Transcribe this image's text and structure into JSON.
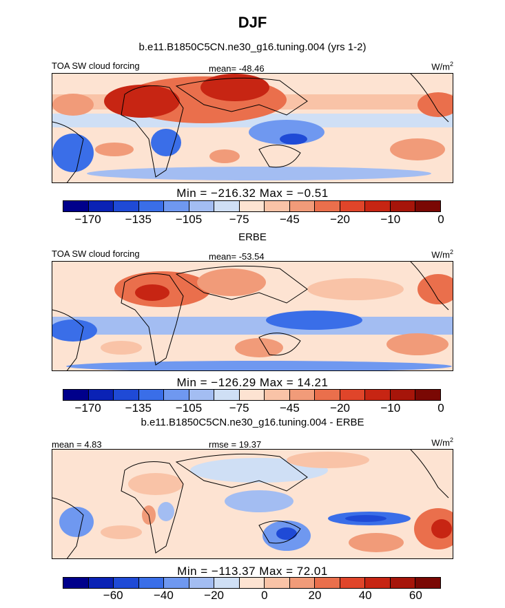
{
  "figure": {
    "title": "DJF",
    "panel1_title": "b.e11.B1850C5CN.ne30_g16.tuning.004 (yrs 1-2)",
    "panel2_title": "ERBE",
    "panel3_title": "b.e11.B1850C5CN.ne30_g16.tuning.004 - ERBE"
  },
  "colors": {
    "abs_scale": [
      "#00008b",
      "#0a22b5",
      "#1f4ad6",
      "#3a6ee8",
      "#6f98f0",
      "#a3bdf2",
      "#cfdff5",
      "#fde3d2",
      "#f9c3a7",
      "#f19b79",
      "#ea6f4c",
      "#e0452a",
      "#c72513",
      "#a6150a",
      "#7a0804"
    ],
    "diff_scale": [
      "#00008b",
      "#0a22b5",
      "#1f4ad6",
      "#3a6ee8",
      "#6f98f0",
      "#a3bdf2",
      "#cfdff5",
      "#fde3d2",
      "#f9c3a7",
      "#f19b79",
      "#ea6f4c",
      "#e0452a",
      "#c72513",
      "#a6150a",
      "#7a0804"
    ]
  },
  "chart_data": [
    {
      "type": "heatmap",
      "panel": "model",
      "title": "b.e11.B1850C5CN.ne30_g16.tuning.004 (yrs 1-2)",
      "left_label": "TOA SW cloud forcing",
      "stat_label": "mean= -48.46",
      "units_base": "W/m",
      "units_exp": "2",
      "min_max_label": "Min = -216.32 Max =  -0.51",
      "mean": -48.46,
      "min": -216.32,
      "max": -0.51,
      "colorbar_ticks": [
        "-170",
        "-135",
        "-105",
        "-75",
        "-45",
        "-20",
        "-10",
        "0"
      ],
      "colorbar_tick_segments": [
        1,
        3,
        5,
        7,
        9,
        11,
        13,
        15
      ]
    },
    {
      "type": "heatmap",
      "panel": "observations",
      "title": "ERBE",
      "left_label": "TOA SW cloud forcing",
      "stat_label": "mean= -53.54",
      "units_base": "W/m",
      "units_exp": "2",
      "min_max_label": "Min = -126.29 Max =  14.21",
      "mean": -53.54,
      "min": -126.29,
      "max": 14.21,
      "colorbar_ticks": [
        "-170",
        "-135",
        "-105",
        "-75",
        "-45",
        "-20",
        "-10",
        "0"
      ],
      "colorbar_tick_segments": [
        1,
        3,
        5,
        7,
        9,
        11,
        13,
        15
      ]
    },
    {
      "type": "heatmap",
      "panel": "difference",
      "title": "b.e11.B1850C5CN.ne30_g16.tuning.004 - ERBE",
      "left_label": "mean =   4.83",
      "stat_label": "rmse =  19.37",
      "units_base": "W/m",
      "units_exp": "2",
      "min_max_label": "Min = -113.37 Max =  72.01",
      "mean": 4.83,
      "rmse": 19.37,
      "min": -113.37,
      "max": 72.01,
      "colorbar_ticks": [
        "-60",
        "-40",
        "-20",
        "0",
        "20",
        "40",
        "60"
      ],
      "colorbar_tick_segments": [
        2,
        4,
        6,
        8,
        10,
        12,
        14
      ]
    }
  ]
}
